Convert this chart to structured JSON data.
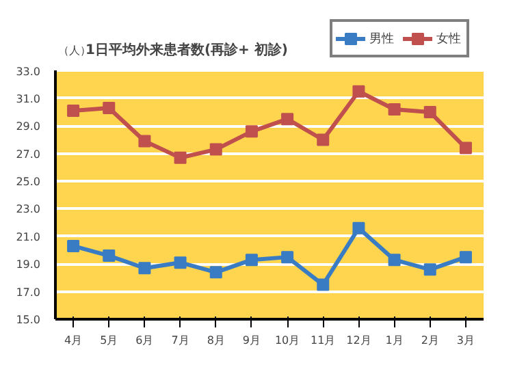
{
  "chart_data": {
    "type": "line",
    "title": "1日平均外来患者数(再診+ 初診)",
    "ylabel": "（人）",
    "categories": [
      "4月",
      "5月",
      "6月",
      "7月",
      "8月",
      "9月",
      "10月",
      "11月",
      "12月",
      "1月",
      "2月",
      "3月"
    ],
    "series": [
      {
        "name": "男性",
        "color": "#3a7cc4",
        "values": [
          20.3,
          19.6,
          18.7,
          19.1,
          18.4,
          19.3,
          19.5,
          17.5,
          21.6,
          19.3,
          18.6,
          19.5
        ]
      },
      {
        "name": "女性",
        "color": "#c0504d",
        "values": [
          30.1,
          30.3,
          27.9,
          26.7,
          27.3,
          28.6,
          29.5,
          28.0,
          31.5,
          30.2,
          30.0,
          27.4
        ]
      }
    ],
    "ylim": [
      15,
      33
    ],
    "yticks": [
      {
        "value": 15,
        "label": "15.0"
      },
      {
        "value": 17,
        "label": "17.0"
      },
      {
        "value": 19,
        "label": "19.0"
      },
      {
        "value": 21,
        "label": "21.0"
      },
      {
        "value": 23,
        "label": "23.0"
      },
      {
        "value": 25,
        "label": "25.0"
      },
      {
        "value": 27,
        "label": "27.0"
      },
      {
        "value": 29,
        "label": "29.0"
      },
      {
        "value": 31,
        "label": "31.0"
      },
      {
        "value": 33,
        "label": "33.0"
      }
    ],
    "grid": "y",
    "legend": "top right",
    "marker": "square",
    "line_style": "solid"
  }
}
